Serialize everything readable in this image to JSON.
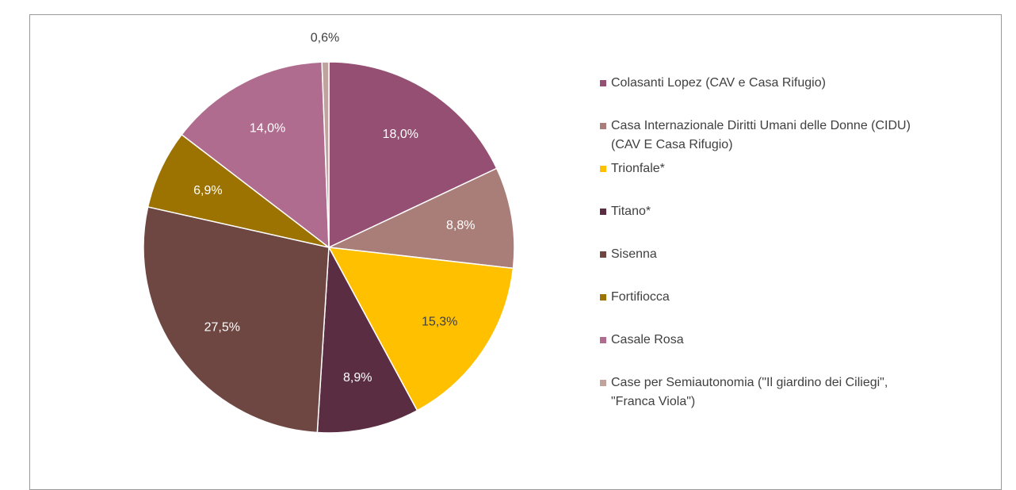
{
  "chart_data": {
    "type": "pie",
    "categories": [
      "Colasanti Lopez (CAV e Casa Rifugio)",
      "Casa Internazionale Diritti Umani delle Donne (CIDU) (CAV E Casa Rifugio)",
      "Trionfale*",
      "Titano*",
      "Sisenna",
      "Fortifiocca",
      "Casale Rosa",
      "Case per Semiautonomia (\"Il giardino dei Ciliegi\", \"Franca Viola\")"
    ],
    "values": [
      18.0,
      8.8,
      15.3,
      8.9,
      27.5,
      6.9,
      14.0,
      0.6
    ],
    "value_labels": [
      "18,0%",
      "8,8%",
      "15,3%",
      "8,9%",
      "27,5%",
      "6,9%",
      "14,0%",
      "0,6%"
    ],
    "colors": [
      "#954F72",
      "#AA7E78",
      "#FFC000",
      "#5A2D42",
      "#6E4743",
      "#9C7200",
      "#B06C8E",
      "#C0A39C"
    ],
    "legend": "right"
  }
}
